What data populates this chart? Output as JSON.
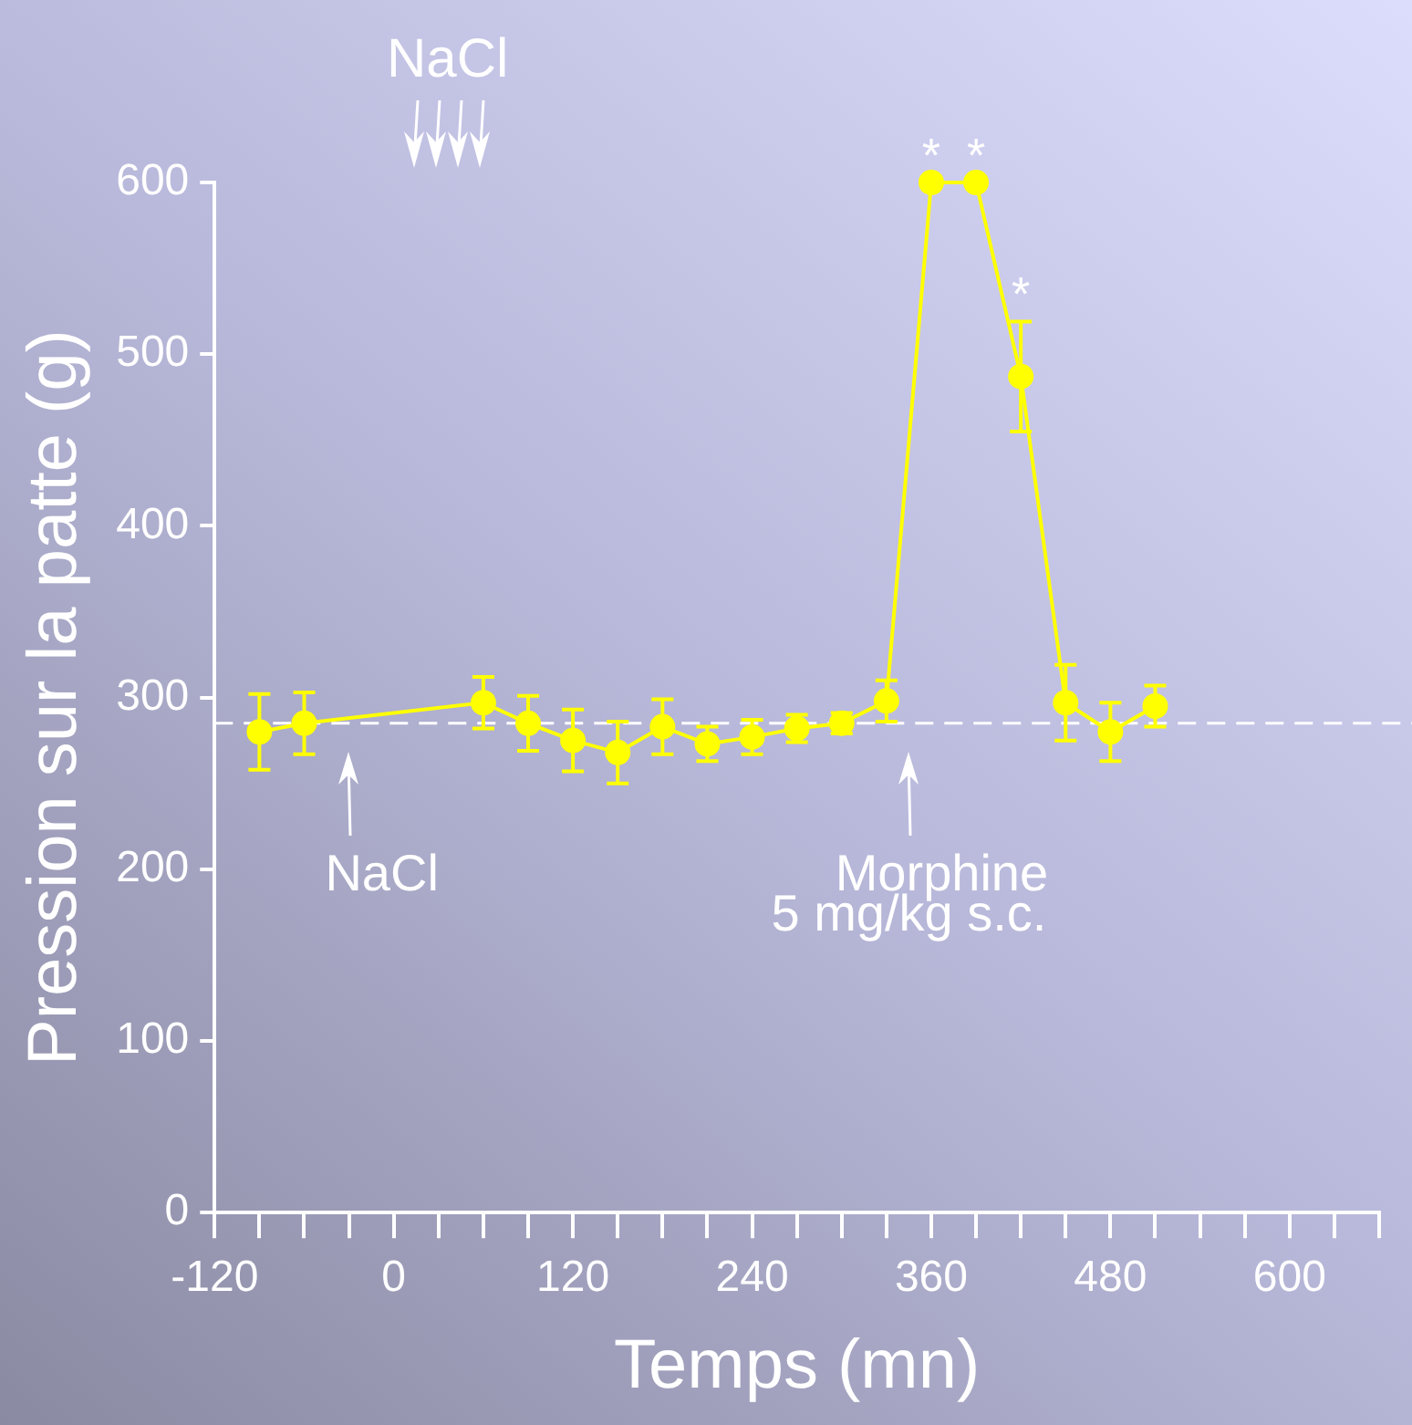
{
  "chart_data": {
    "type": "line",
    "xlabel": "Temps (mn)",
    "ylabel": "Pression sur la patte (g)",
    "x": [
      -90,
      -60,
      60,
      90,
      120,
      150,
      180,
      210,
      240,
      270,
      300,
      330,
      360,
      390,
      420,
      450,
      480,
      510
    ],
    "values": [
      280,
      285,
      297,
      285,
      275,
      268,
      283,
      273,
      277,
      282,
      285,
      298,
      600,
      600,
      487,
      297,
      280,
      295
    ],
    "errors": [
      22,
      18,
      15,
      16,
      18,
      18,
      16,
      10,
      10,
      8,
      6,
      12,
      null,
      null,
      32,
      22,
      17,
      12
    ],
    "color": "#ffff00",
    "marker": "circle",
    "grid": false,
    "legend": false,
    "xlim": [
      -120,
      660
    ],
    "xticks": [
      -120,
      {
        "value": -90,
        "label": null
      },
      {
        "value": -60,
        "label": null
      },
      {
        "value": -30,
        "label": null
      },
      0,
      {
        "value": 30,
        "label": null
      },
      {
        "value": 60,
        "label": null
      },
      {
        "value": 90,
        "label": null
      },
      120,
      {
        "value": 150,
        "label": null
      },
      {
        "value": 180,
        "label": null
      },
      {
        "value": 210,
        "label": null
      },
      240,
      {
        "value": 270,
        "label": null
      },
      {
        "value": 300,
        "label": null
      },
      {
        "value": 330,
        "label": null
      },
      360,
      {
        "value": 390,
        "label": null
      },
      {
        "value": 420,
        "label": null
      },
      {
        "value": 450,
        "label": null
      },
      480,
      {
        "value": 510,
        "label": null
      },
      {
        "value": 540,
        "label": null
      },
      {
        "value": 570,
        "label": null
      },
      600,
      {
        "value": 630,
        "label": null
      },
      {
        "value": 660,
        "label": null
      }
    ],
    "ylim": [
      0,
      600
    ],
    "yticks": [
      0,
      100,
      200,
      300,
      400,
      500,
      600
    ],
    "ref_lines": [
      {
        "axis": "y",
        "value": 285,
        "color": "#ffffff",
        "line_style": "dashed"
      }
    ],
    "annotations": [
      "NaCl",
      {
        "text": "NaCl",
        "x": -30,
        "y": 285
      },
      {
        "text": "Morphine\n5 mg/kg s.c.",
        "x": 345,
        "y": 285
      },
      {
        "text": "*",
        "x": 360,
        "y": 600
      },
      {
        "text": "*",
        "x": 390,
        "y": 600
      },
      {
        "text": "*",
        "x": 420,
        "y": 519
      }
    ]
  }
}
